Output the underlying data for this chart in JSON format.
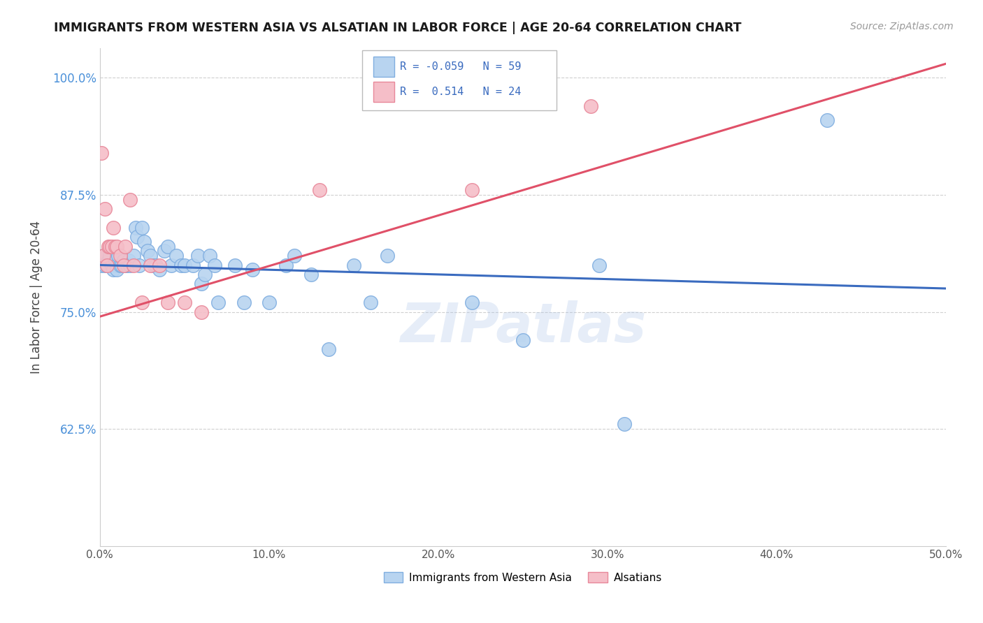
{
  "title": "IMMIGRANTS FROM WESTERN ASIA VS ALSATIAN IN LABOR FORCE | AGE 20-64 CORRELATION CHART",
  "source": "Source: ZipAtlas.com",
  "ylabel": "In Labor Force | Age 20-64",
  "xlim": [
    0.0,
    0.5
  ],
  "ylim": [
    0.5,
    1.032
  ],
  "xticks": [
    0.0,
    0.1,
    0.2,
    0.3,
    0.4,
    0.5
  ],
  "xticklabels": [
    "0.0%",
    "10.0%",
    "20.0%",
    "30.0%",
    "40.0%",
    "50.0%"
  ],
  "yticks": [
    0.625,
    0.75,
    0.875,
    1.0
  ],
  "yticklabels": [
    "62.5%",
    "75.0%",
    "87.5%",
    "100.0%"
  ],
  "blue_color": "#b8d4f0",
  "blue_edge": "#80aee0",
  "pink_color": "#f5bec8",
  "pink_edge": "#e8889a",
  "line_blue": "#3a6bbf",
  "line_pink": "#e05068",
  "R_blue": -0.059,
  "N_blue": 59,
  "R_pink": 0.514,
  "N_pink": 24,
  "legend_blue_label": "Immigrants from Western Asia",
  "legend_pink_label": "Alsatians",
  "watermark": "ZIPatlas",
  "blue_x": [
    0.001,
    0.002,
    0.003,
    0.004,
    0.005,
    0.006,
    0.007,
    0.008,
    0.009,
    0.01,
    0.01,
    0.011,
    0.012,
    0.013,
    0.014,
    0.015,
    0.016,
    0.017,
    0.018,
    0.02,
    0.021,
    0.022,
    0.023,
    0.025,
    0.026,
    0.028,
    0.03,
    0.032,
    0.033,
    0.035,
    0.038,
    0.04,
    0.042,
    0.045,
    0.048,
    0.05,
    0.055,
    0.058,
    0.06,
    0.062,
    0.065,
    0.068,
    0.07,
    0.08,
    0.085,
    0.09,
    0.1,
    0.11,
    0.115,
    0.125,
    0.135,
    0.15,
    0.16,
    0.17,
    0.22,
    0.25,
    0.295,
    0.31,
    0.43
  ],
  "blue_y": [
    0.8,
    0.81,
    0.8,
    0.8,
    0.805,
    0.81,
    0.8,
    0.795,
    0.805,
    0.8,
    0.795,
    0.81,
    0.8,
    0.8,
    0.805,
    0.8,
    0.8,
    0.805,
    0.8,
    0.81,
    0.84,
    0.83,
    0.8,
    0.84,
    0.825,
    0.815,
    0.81,
    0.8,
    0.8,
    0.795,
    0.815,
    0.82,
    0.8,
    0.81,
    0.8,
    0.8,
    0.8,
    0.81,
    0.78,
    0.79,
    0.81,
    0.8,
    0.76,
    0.8,
    0.76,
    0.795,
    0.76,
    0.8,
    0.81,
    0.79,
    0.71,
    0.8,
    0.76,
    0.81,
    0.76,
    0.72,
    0.8,
    0.63,
    0.955
  ],
  "pink_x": [
    0.001,
    0.002,
    0.003,
    0.004,
    0.005,
    0.006,
    0.007,
    0.008,
    0.009,
    0.01,
    0.012,
    0.014,
    0.015,
    0.018,
    0.02,
    0.025,
    0.03,
    0.035,
    0.04,
    0.05,
    0.06,
    0.13,
    0.22,
    0.29
  ],
  "pink_y": [
    0.92,
    0.81,
    0.86,
    0.8,
    0.82,
    0.82,
    0.82,
    0.84,
    0.82,
    0.82,
    0.81,
    0.8,
    0.82,
    0.87,
    0.8,
    0.76,
    0.8,
    0.8,
    0.76,
    0.76,
    0.75,
    0.88,
    0.88,
    0.97
  ],
  "blue_line_x0": 0.0,
  "blue_line_y0": 0.8,
  "blue_line_x1": 0.5,
  "blue_line_y1": 0.775,
  "pink_line_x0": 0.0,
  "pink_line_y0": 0.745,
  "pink_line_x1": 0.5,
  "pink_line_y1": 1.015
}
